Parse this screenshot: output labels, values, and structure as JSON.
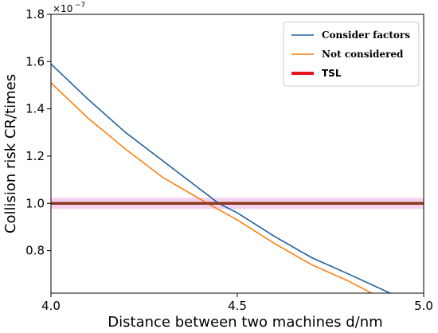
{
  "chart_data": {
    "type": "line",
    "xlabel": "Distance between two machines d/nm",
    "ylabel": "Collision risk CR/times",
    "y_multiplier": "×10",
    "y_multiplier_exp": "−7",
    "xlim": [
      4.0,
      5.0
    ],
    "ylim": [
      0.62,
      1.8
    ],
    "x_ticks": [
      "4.0",
      "4.5",
      "5.0"
    ],
    "x_tick_values": [
      4.0,
      4.5,
      5.0
    ],
    "y_ticks": [
      "0.8",
      "1.0",
      "1.2",
      "1.4",
      "1.6",
      "1.8"
    ],
    "y_tick_values": [
      0.8,
      1.0,
      1.2,
      1.4,
      1.6,
      1.8
    ],
    "grid": false,
    "legend_position": "top-right",
    "series": [
      {
        "name": "Consider factors",
        "color": "#1f5fa0",
        "x": [
          4.0,
          4.1,
          4.2,
          4.3,
          4.4,
          4.45,
          4.5,
          4.6,
          4.7,
          4.8,
          4.91
        ],
        "values": [
          1.59,
          1.44,
          1.3,
          1.18,
          1.06,
          1.0,
          0.96,
          0.86,
          0.77,
          0.7,
          0.62
        ]
      },
      {
        "name": "Not considered",
        "color": "#ff7f0e",
        "x": [
          4.0,
          4.1,
          4.2,
          4.3,
          4.42,
          4.5,
          4.6,
          4.7,
          4.8,
          4.86
        ],
        "values": [
          1.51,
          1.36,
          1.23,
          1.11,
          1.0,
          0.93,
          0.83,
          0.74,
          0.67,
          0.62
        ]
      },
      {
        "name": "TSL",
        "color": "#e8141c",
        "x": [
          4.0,
          5.0
        ],
        "values": [
          1.0,
          1.0
        ]
      }
    ]
  }
}
